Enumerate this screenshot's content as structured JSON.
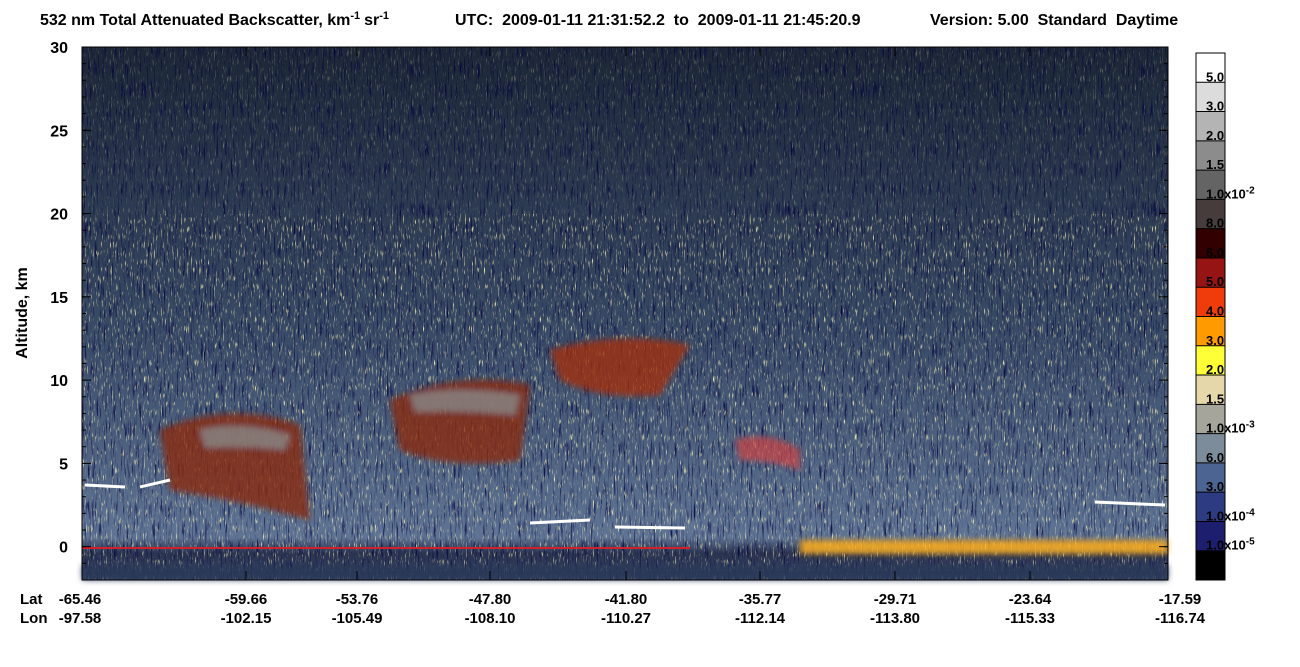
{
  "chart_data": {
    "type": "heatmap",
    "title": {
      "main": "532 nm Total Attenuated Backscatter, km",
      "exp1": "-1",
      "unit2": "sr",
      "exp2": "-1"
    },
    "utc": "UTC:  2009-01-11 21:31:52.2  to  2009-01-11 21:45:20.9",
    "version": "Version: 5.00  Standard  Daytime",
    "y_label": "Altitude, km",
    "ylim": [
      -2,
      30
    ],
    "yticks": [
      0,
      5,
      10,
      15,
      20,
      25,
      30
    ],
    "x_row_names": [
      "Lat",
      "Lon"
    ],
    "lat": [
      "-65.46",
      "-59.66",
      "-53.76",
      "-47.80",
      "-41.80",
      "-35.77",
      "-29.71",
      "-23.64",
      "-17.59"
    ],
    "lon": [
      "-97.58",
      "-102.15",
      "-105.49",
      "-108.10",
      "-110.27",
      "-112.14",
      "-113.80",
      "-115.33",
      "-116.74"
    ],
    "colorbar": {
      "colors": [
        "#ffffff",
        "#dcdcdc",
        "#b4b4b4",
        "#8c8c8c",
        "#646464",
        "#463c3c",
        "#320000",
        "#961414",
        "#f03c0a",
        "#ff9b00",
        "#ffff37",
        "#e6d7aa",
        "#a5a59b",
        "#7d8c9b",
        "#4b6491",
        "#2d3c82",
        "#1e1e6e",
        "#000000"
      ],
      "labels": [
        {
          "base": "5.0"
        },
        {
          "base": "3.0"
        },
        {
          "base": "2.0"
        },
        {
          "base": "1.5"
        },
        {
          "base": "1.0x10",
          "exp": "-2"
        },
        {
          "base": "8.0"
        },
        {
          "base": "6.0"
        },
        {
          "base": "5.0"
        },
        {
          "base": "4.0"
        },
        {
          "base": "3.0"
        },
        {
          "base": "2.0"
        },
        {
          "base": "1.5"
        },
        {
          "base": "1.0x10",
          "exp": "-3"
        },
        {
          "base": "6.0"
        },
        {
          "base": "3.0"
        },
        {
          "base": "1.0x10",
          "exp": "-4"
        },
        {
          "base": "1.0x10",
          "exp": "-5"
        }
      ]
    }
  }
}
